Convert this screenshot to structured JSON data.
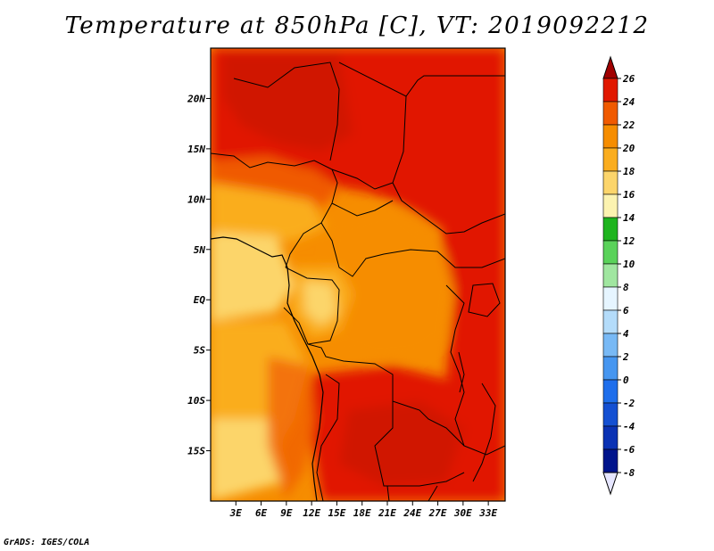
{
  "title": "Temperature at 850hPa [C], VT: 2019092212",
  "credit": "GrADS: IGES/COLA",
  "map": {
    "lat_ticks": [
      "20N",
      "15N",
      "10N",
      "5N",
      "EQ",
      "5S",
      "10S",
      "15S"
    ],
    "lon_ticks": [
      "3E",
      "6E",
      "9E",
      "12E",
      "15E",
      "18E",
      "21E",
      "24E",
      "27E",
      "30E",
      "33E"
    ],
    "lon_range": [
      0,
      35
    ],
    "lat_range": [
      -20,
      25
    ]
  },
  "colorbar": {
    "labels": [
      "26",
      "24",
      "22",
      "20",
      "18",
      "16",
      "14",
      "12",
      "10",
      "8",
      "6",
      "4",
      "2",
      "0",
      "-2",
      "-4",
      "-6",
      "-8"
    ],
    "colors": [
      "#a00000",
      "#e11800",
      "#f05a00",
      "#f68d00",
      "#faad1f",
      "#fcd56b",
      "#fcf3b0",
      "#1eb41e",
      "#5ad25a",
      "#a0e6a0",
      "#e6f5ff",
      "#b4dcfa",
      "#78b9f5",
      "#4696f0",
      "#1e6eeb",
      "#1450d2",
      "#0a32b4",
      "#00148c",
      "#e6e6ff"
    ]
  }
}
